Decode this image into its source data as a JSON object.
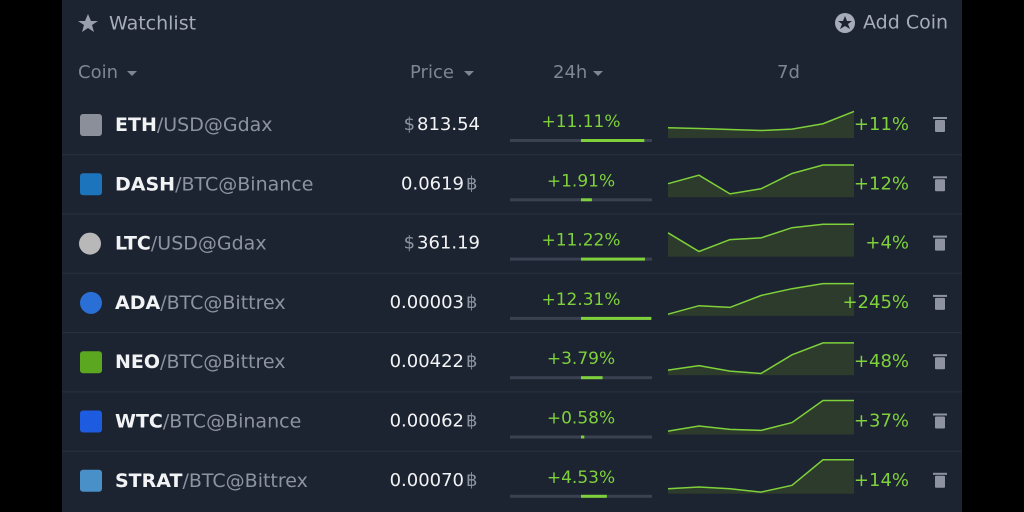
{
  "header": {
    "title": "Watchlist",
    "action": "Add Coin"
  },
  "columns": [
    "Coin",
    "Price",
    "24h",
    "7d"
  ],
  "rows": [
    {
      "symbol": "ETH",
      "quote": "USD",
      "exchange": "@Gdax",
      "unit": "$",
      "unit_position": "before",
      "price": "813.54",
      "change_24h": {
        "value": 11.11,
        "label": "+11.11%"
      },
      "change_7d": "+11%",
      "spark": [
        30,
        28,
        25,
        22,
        26,
        42,
        78
      ]
    },
    {
      "symbol": "DASH",
      "quote": "BTC",
      "exchange": "@Binance",
      "unit": "฿",
      "unit_position": "after",
      "price": "0.0619",
      "change_24h": {
        "value": 1.91,
        "label": "+1.91%"
      },
      "change_7d": "+12%",
      "spark": [
        40,
        65,
        10,
        25,
        70,
        95,
        95
      ]
    },
    {
      "symbol": "LTC",
      "quote": "USD",
      "exchange": "@Gdax",
      "unit": "$",
      "unit_position": "before",
      "price": "361.19",
      "change_24h": {
        "value": 11.22,
        "label": "+11.22%"
      },
      "change_7d": "+4%",
      "spark": [
        70,
        15,
        50,
        55,
        85,
        95,
        95
      ]
    },
    {
      "symbol": "ADA",
      "quote": "BTC",
      "exchange": "@Bittrex",
      "unit": "฿",
      "unit_position": "after",
      "price": "0.00003",
      "change_24h": {
        "value": 12.31,
        "label": "+12.31%"
      },
      "change_7d": "+245%",
      "spark": [
        5,
        30,
        25,
        60,
        80,
        95,
        95
      ]
    },
    {
      "symbol": "NEO",
      "quote": "BTC",
      "exchange": "@Bittrex",
      "unit": "฿",
      "unit_position": "after",
      "price": "0.00422",
      "change_24h": {
        "value": 3.79,
        "label": "+3.79%"
      },
      "change_7d": "+48%",
      "spark": [
        15,
        28,
        12,
        5,
        60,
        95,
        95
      ]
    },
    {
      "symbol": "WTC",
      "quote": "BTC",
      "exchange": "@Binance",
      "unit": "฿",
      "unit_position": "after",
      "price": "0.00062",
      "change_24h": {
        "value": 0.58,
        "label": "+0.58%"
      },
      "change_7d": "+37%",
      "spark": [
        10,
        25,
        15,
        12,
        35,
        100,
        100
      ]
    },
    {
      "symbol": "STRAT",
      "quote": "BTC",
      "exchange": "@Bittrex",
      "unit": "฿",
      "unit_position": "after",
      "price": "0.00070",
      "change_24h": {
        "value": 4.53,
        "label": "+4.53%"
      },
      "change_7d": "+14%",
      "spark": [
        15,
        20,
        15,
        5,
        25,
        100,
        100
      ]
    }
  ]
}
